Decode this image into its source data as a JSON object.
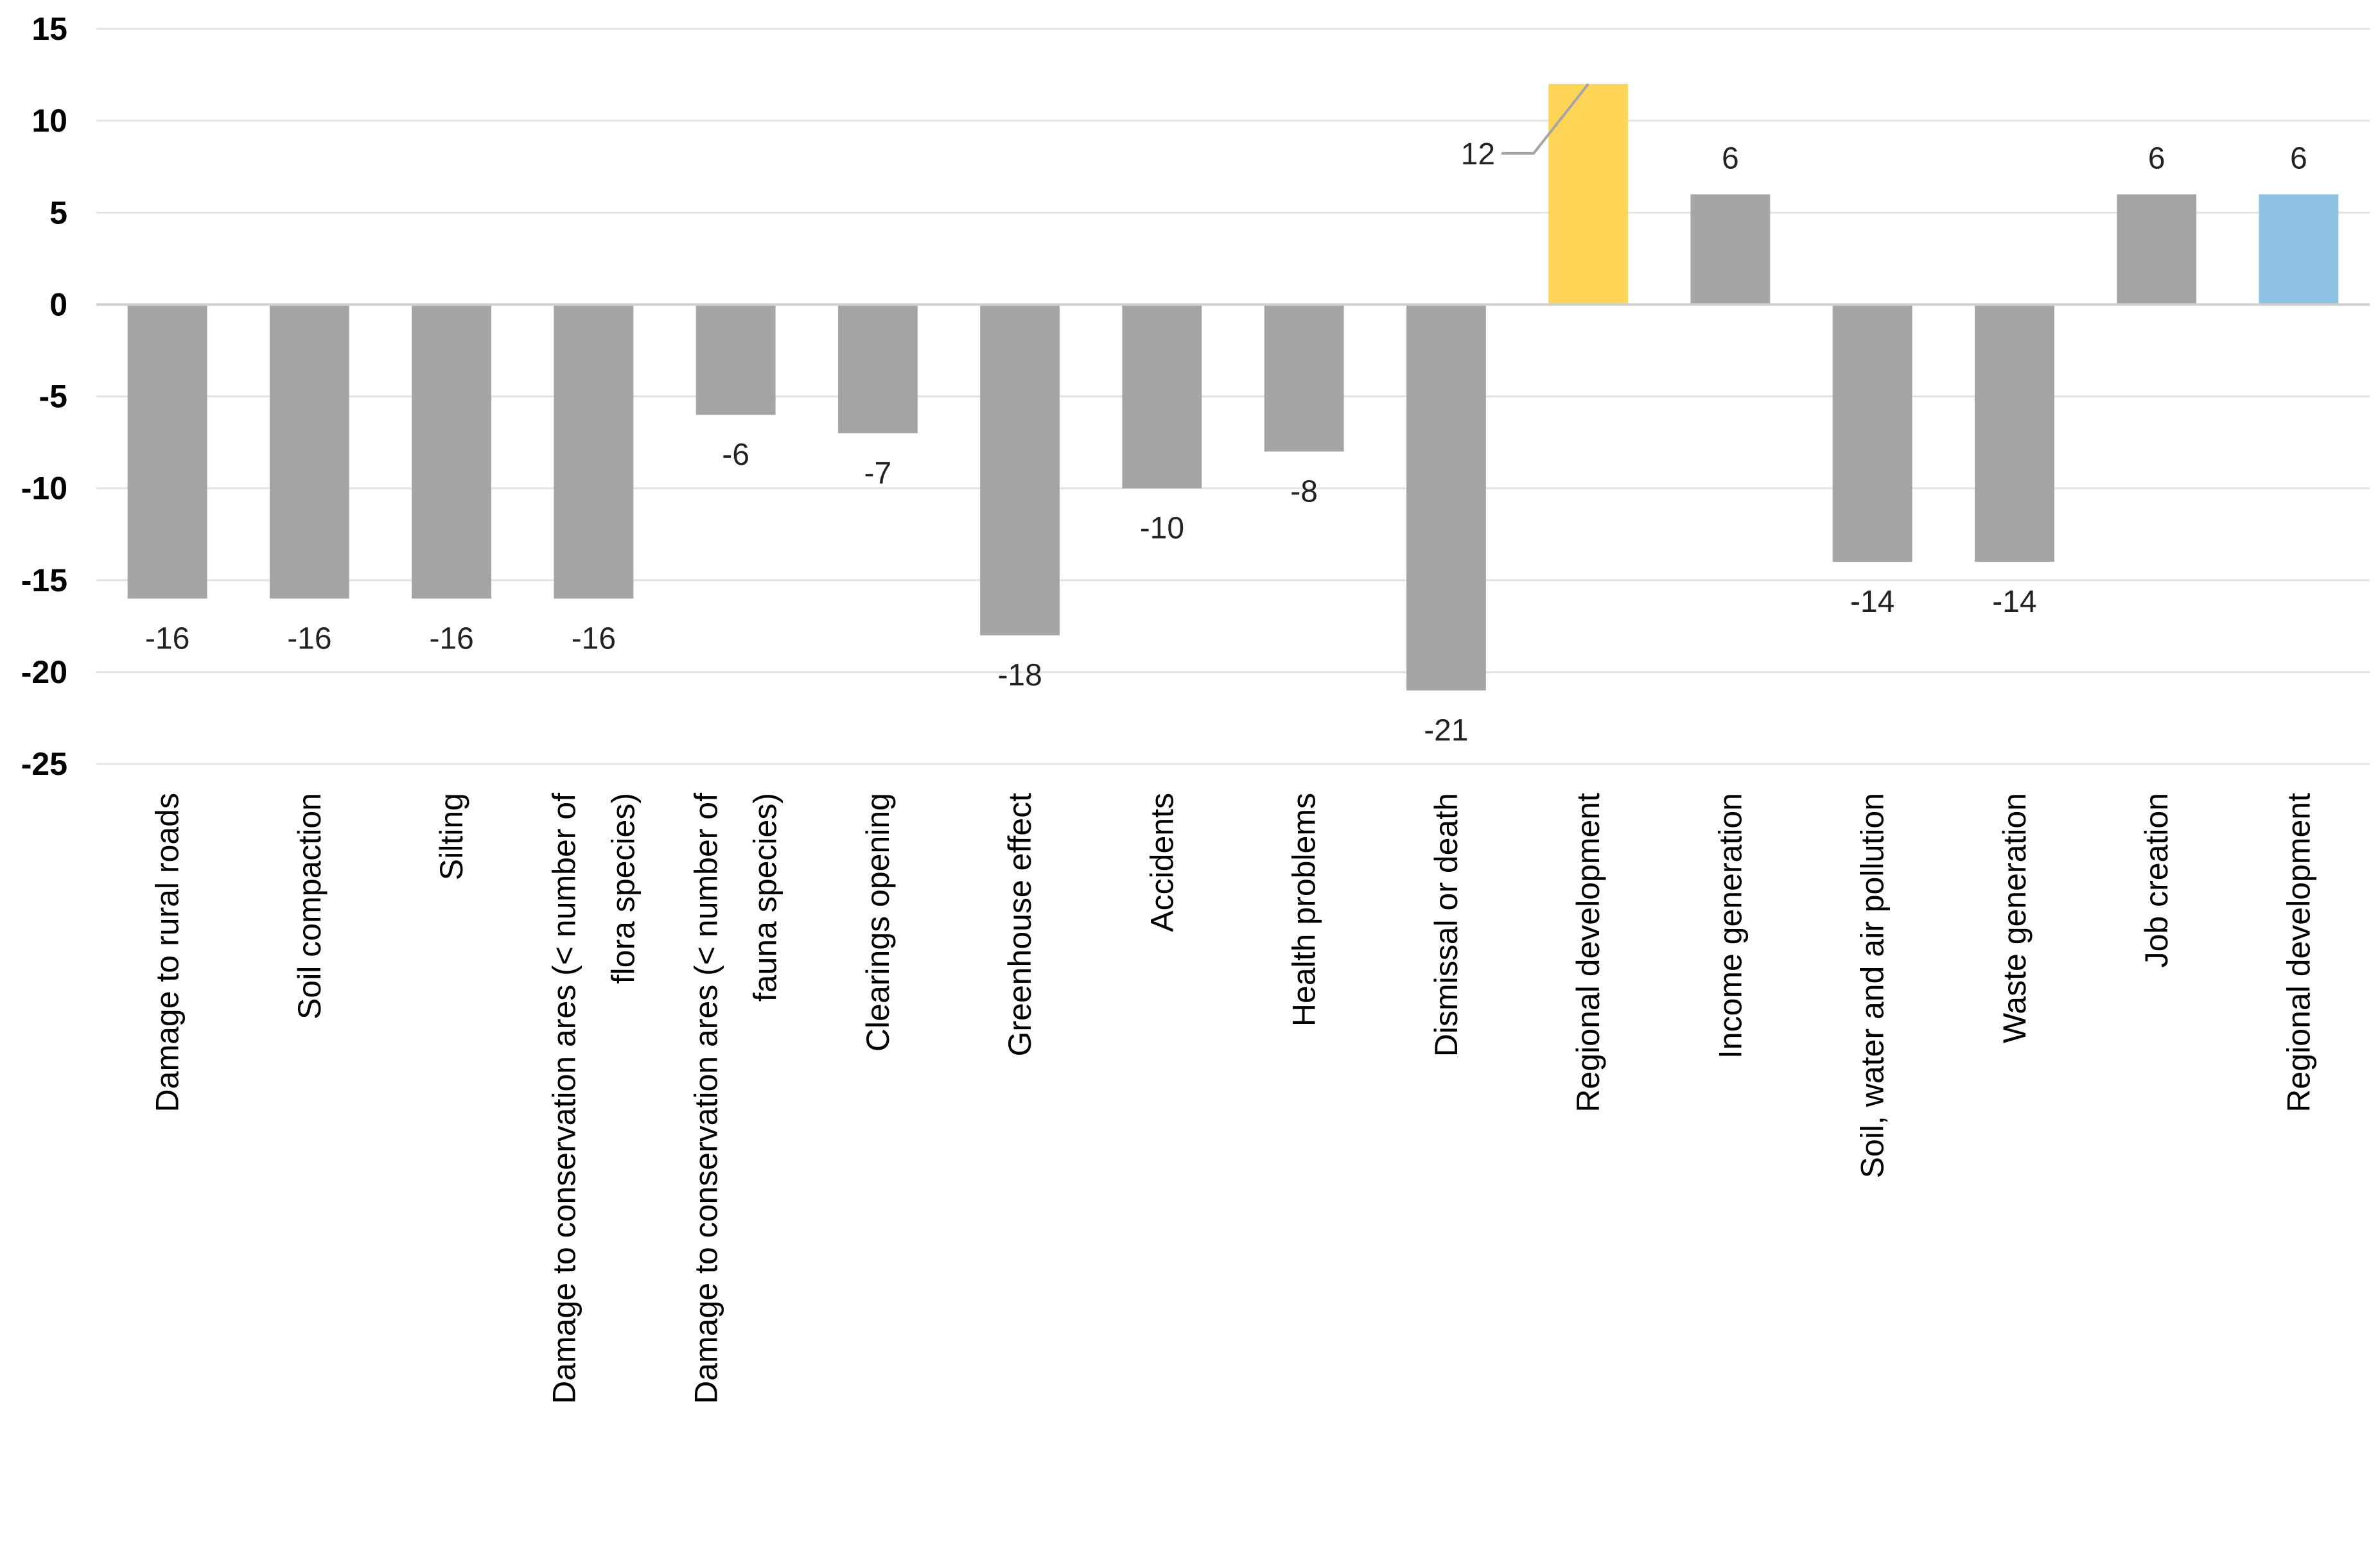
{
  "chart_data": {
    "type": "bar",
    "title": "",
    "xlabel": "",
    "ylabel": "",
    "ylim": [
      -25,
      15
    ],
    "yticks": [
      15,
      10,
      5,
      0,
      -5,
      -10,
      -15,
      -20,
      -25
    ],
    "grid": true,
    "legend": "none",
    "categories": [
      [
        "Damage to rural roads"
      ],
      [
        "Soil compaction"
      ],
      [
        "Silting"
      ],
      [
        "Damage to conservation  ares (< number of",
        "flora species)"
      ],
      [
        "Damage to conservation  ares (< number of",
        "fauna species)"
      ],
      [
        "Clearings  opening"
      ],
      [
        "Greenhouse  effect"
      ],
      [
        "Accidents"
      ],
      [
        "Health  problems"
      ],
      [
        "Dismissal or death"
      ],
      [
        "Regional  development"
      ],
      [
        "Income  generation"
      ],
      [
        "Soil, water and air pollution"
      ],
      [
        "Waste  generation"
      ],
      [
        "Job creation"
      ],
      [
        "Regional  development"
      ]
    ],
    "values": [
      -16,
      -16,
      -16,
      -16,
      -6,
      -7,
      -18,
      -10,
      -8,
      -21,
      12,
      6,
      -14,
      -14,
      6,
      6
    ],
    "colors": [
      "#a5a5a5",
      "#a5a5a5",
      "#a5a5a5",
      "#a5a5a5",
      "#a5a5a5",
      "#a5a5a5",
      "#a5a5a5",
      "#a5a5a5",
      "#a5a5a5",
      "#a5a5a5",
      "#ffd557",
      "#a5a5a5",
      "#a5a5a5",
      "#a5a5a5",
      "#a5a5a5",
      "#8ec3e6"
    ],
    "callout_index": 10
  }
}
